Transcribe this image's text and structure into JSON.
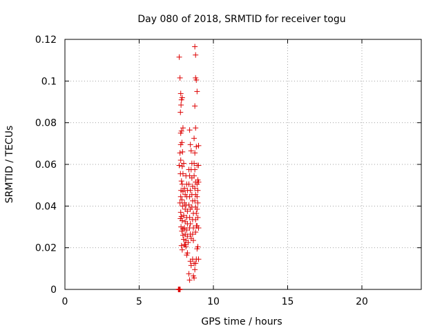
{
  "chart_data": {
    "type": "scatter",
    "title": "Day 080 of 2018, SRMTID for receiver togu",
    "xlabel": "GPS time / hours",
    "ylabel": "SRMTID / TECUs",
    "xlim": [
      0,
      24
    ],
    "ylim": [
      0,
      0.12
    ],
    "x_ticks": [
      0,
      5,
      10,
      15,
      20
    ],
    "x_tick_labels": [
      "0",
      "5",
      "10",
      "15",
      "20"
    ],
    "y_ticks": [
      0,
      0.02,
      0.04,
      0.06,
      0.08,
      0.1,
      0.12
    ],
    "y_tick_labels": [
      "0",
      "0.02",
      "0.04",
      "0.06",
      "0.08",
      "0.1",
      "0.12"
    ],
    "grid": true,
    "marker": "plus",
    "marker_color": "#dd0000",
    "series": [
      {
        "name": "SRMTID",
        "points": [
          [
            7.7,
            0.1115
          ],
          [
            7.75,
            0.1015
          ],
          [
            7.8,
            0.094
          ],
          [
            7.85,
            0.091
          ],
          [
            7.9,
            0.092
          ],
          [
            7.82,
            0.0885
          ],
          [
            7.78,
            0.085
          ],
          [
            7.8,
            0.075
          ],
          [
            7.85,
            0.076
          ],
          [
            7.95,
            0.0775
          ],
          [
            7.8,
            0.0695
          ],
          [
            7.88,
            0.0705
          ],
          [
            7.75,
            0.0655
          ],
          [
            7.92,
            0.066
          ],
          [
            7.8,
            0.062
          ],
          [
            7.7,
            0.0595
          ],
          [
            7.9,
            0.059
          ],
          [
            7.78,
            0.0555
          ],
          [
            7.95,
            0.0555
          ],
          [
            8.0,
            0.0605
          ],
          [
            7.85,
            0.052
          ],
          [
            7.9,
            0.0505
          ],
          [
            7.82,
            0.0475
          ],
          [
            7.95,
            0.047
          ],
          [
            7.8,
            0.0445
          ],
          [
            7.88,
            0.043
          ],
          [
            7.75,
            0.0415
          ],
          [
            7.92,
            0.04
          ],
          [
            7.8,
            0.037
          ],
          [
            7.85,
            0.035
          ],
          [
            7.78,
            0.034
          ],
          [
            7.9,
            0.033
          ],
          [
            7.82,
            0.03
          ],
          [
            7.95,
            0.029
          ],
          [
            7.88,
            0.028
          ],
          [
            7.95,
            0.026
          ],
          [
            8.0,
            0.024
          ],
          [
            7.85,
            0.021
          ],
          [
            7.9,
            0.019
          ],
          [
            8.05,
            0.0485
          ],
          [
            8.1,
            0.0455
          ],
          [
            8.05,
            0.0415
          ],
          [
            8.1,
            0.0385
          ],
          [
            8.0,
            0.0355
          ],
          [
            8.1,
            0.0325
          ],
          [
            8.05,
            0.0295
          ],
          [
            8.1,
            0.0265
          ],
          [
            8.15,
            0.0235
          ],
          [
            8.05,
            0.0215
          ],
          [
            8.1,
            0.0215
          ],
          [
            8.15,
            0.0205
          ],
          [
            8.2,
            0.0165
          ],
          [
            8.25,
            0.0175
          ],
          [
            8.15,
            0.0545
          ],
          [
            8.2,
            0.0505
          ],
          [
            8.25,
            0.0475
          ],
          [
            8.2,
            0.0445
          ],
          [
            8.15,
            0.0405
          ],
          [
            8.25,
            0.0375
          ],
          [
            8.2,
            0.0345
          ],
          [
            8.25,
            0.0315
          ],
          [
            8.2,
            0.0285
          ],
          [
            8.25,
            0.0255
          ],
          [
            8.3,
            0.0225
          ],
          [
            8.35,
            0.0075
          ],
          [
            8.4,
            0.0045
          ],
          [
            8.35,
            0.0575
          ],
          [
            8.4,
            0.0545
          ],
          [
            8.35,
            0.0505
          ],
          [
            8.45,
            0.0475
          ],
          [
            8.4,
            0.0445
          ],
          [
            8.35,
            0.0405
          ],
          [
            8.45,
            0.0385
          ],
          [
            8.4,
            0.0345
          ],
          [
            8.45,
            0.0315
          ],
          [
            8.4,
            0.0295
          ],
          [
            8.45,
            0.0265
          ],
          [
            8.5,
            0.0245
          ],
          [
            8.45,
            0.0135
          ],
          [
            8.5,
            0.0115
          ],
          [
            8.4,
            0.0765
          ],
          [
            8.45,
            0.0695
          ],
          [
            8.5,
            0.0665
          ],
          [
            8.55,
            0.0605
          ],
          [
            8.5,
            0.0575
          ],
          [
            8.55,
            0.0535
          ],
          [
            8.6,
            0.0495
          ],
          [
            8.55,
            0.0455
          ],
          [
            8.6,
            0.0425
          ],
          [
            8.55,
            0.0395
          ],
          [
            8.65,
            0.0365
          ],
          [
            8.6,
            0.0335
          ],
          [
            8.65,
            0.0295
          ],
          [
            8.6,
            0.0265
          ],
          [
            8.65,
            0.0235
          ],
          [
            8.6,
            0.0145
          ],
          [
            8.7,
            0.0125
          ],
          [
            8.65,
            0.0065
          ],
          [
            8.7,
            0.0055
          ],
          [
            8.7,
            0.0725
          ],
          [
            8.75,
            0.0655
          ],
          [
            8.7,
            0.0605
          ],
          [
            8.75,
            0.0575
          ],
          [
            8.7,
            0.0545
          ],
          [
            8.8,
            0.0515
          ],
          [
            8.75,
            0.0485
          ],
          [
            8.8,
            0.0455
          ],
          [
            8.75,
            0.0425
          ],
          [
            8.8,
            0.0395
          ],
          [
            8.85,
            0.0365
          ],
          [
            8.8,
            0.0335
          ],
          [
            8.85,
            0.0305
          ],
          [
            8.8,
            0.0275
          ],
          [
            8.9,
            0.0195
          ],
          [
            8.85,
            0.0145
          ],
          [
            8.8,
            0.0125
          ],
          [
            8.75,
            0.0095
          ],
          [
            8.75,
            0.1165
          ],
          [
            8.8,
            0.1125
          ],
          [
            8.8,
            0.1015
          ],
          [
            8.85,
            0.1005
          ],
          [
            8.9,
            0.095
          ],
          [
            8.75,
            0.088
          ],
          [
            8.8,
            0.0775
          ],
          [
            8.85,
            0.0685
          ],
          [
            8.9,
            0.0595
          ],
          [
            8.95,
            0.0525
          ],
          [
            8.9,
            0.0505
          ],
          [
            8.95,
            0.0475
          ],
          [
            8.9,
            0.0445
          ],
          [
            8.95,
            0.0415
          ],
          [
            8.9,
            0.0385
          ],
          [
            8.95,
            0.0345
          ],
          [
            8.9,
            0.0305
          ],
          [
            9.0,
            0.0295
          ],
          [
            8.95,
            0.0205
          ],
          [
            9.0,
            0.0145
          ],
          [
            9.0,
            0.069
          ],
          [
            9.0,
            0.0595
          ],
          [
            9.0,
            0.0515
          ]
        ],
        "bottom_cluster": [
          7.65,
          7.7,
          7.75
        ]
      }
    ]
  }
}
